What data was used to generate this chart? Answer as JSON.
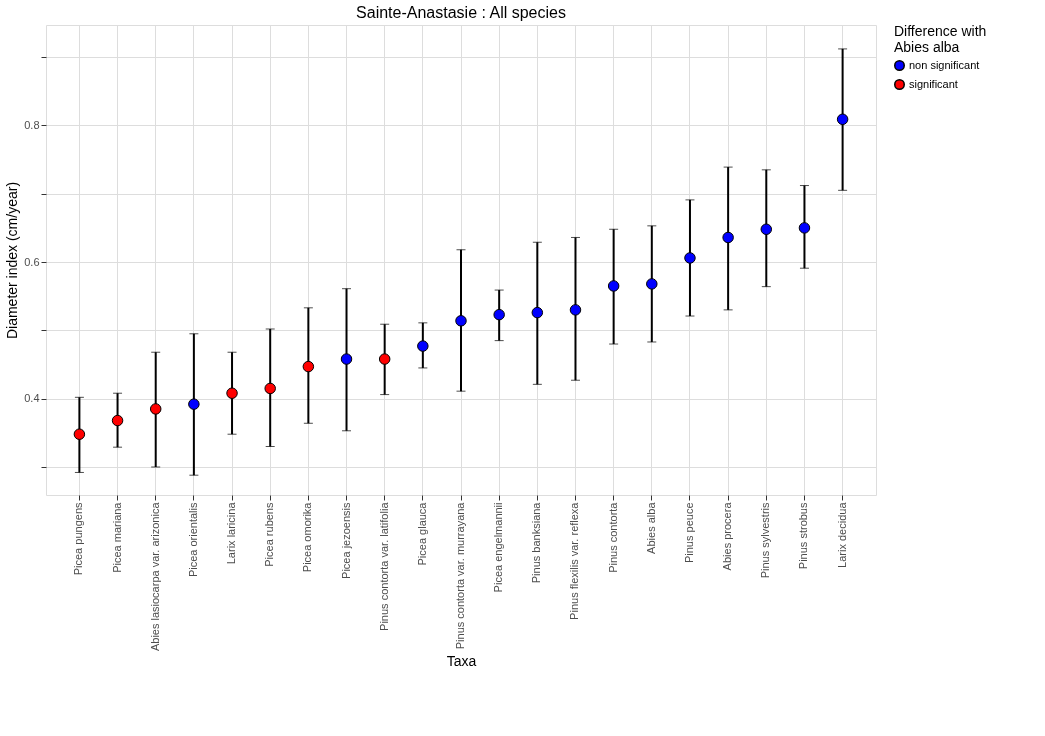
{
  "chart_data": {
    "type": "scatter",
    "title": "Sainte-Anastasie : All species",
    "xlabel": "Taxa",
    "ylabel": "Diameter index (cm/year)",
    "legend_title": "Difference with\n Abies alba",
    "categories": [
      "Picea pungens",
      "Picea mariana",
      "Abies lasiocarpa var. arizonica",
      "Picea orientalis",
      "Larix laricina",
      "Picea rubens",
      "Picea omorika",
      "Picea jezoensis",
      "Pinus contorta var. latifolia",
      "Picea glauca",
      "Pinus contorta var. murrayana",
      "Picea engelmannii",
      "Pinus banksiana",
      "Pinus flexilis var. reflexa",
      "Pinus contorta",
      "Abies alba",
      "Pinus peuce",
      "Abies procera",
      "Pinus sylvestris",
      "Pinus strobus",
      "Larix decidua"
    ],
    "series": [
      {
        "name": "non significant",
        "color": "#0000ff",
        "values": [
          null,
          null,
          null,
          0.392,
          null,
          null,
          null,
          0.458,
          null,
          0.477,
          0.514,
          0.523,
          0.526,
          0.53,
          0.565,
          0.568,
          0.606,
          0.636,
          0.648,
          0.65,
          0.809
        ],
        "errors": [
          null,
          null,
          null,
          [
            0.288,
            0.495
          ],
          null,
          null,
          null,
          [
            0.353,
            0.561
          ],
          null,
          [
            0.445,
            0.511
          ],
          [
            0.411,
            0.618
          ],
          [
            0.485,
            0.559
          ],
          [
            0.421,
            0.629
          ],
          [
            0.427,
            0.636
          ],
          [
            0.48,
            0.648
          ],
          [
            0.483,
            0.653
          ],
          [
            0.521,
            0.691
          ],
          [
            0.53,
            0.739
          ],
          [
            0.564,
            0.735
          ],
          [
            0.591,
            0.712
          ],
          [
            0.705,
            0.912
          ]
        ]
      },
      {
        "name": "significant",
        "color": "#ff0000",
        "values": [
          0.348,
          0.368,
          0.385,
          null,
          0.408,
          0.415,
          0.447,
          null,
          0.458,
          null,
          null,
          null,
          null,
          null,
          null,
          null,
          null,
          null,
          null,
          null,
          null
        ],
        "errors": [
          [
            0.292,
            0.402
          ],
          [
            0.329,
            0.408
          ],
          [
            0.3,
            0.468
          ],
          null,
          [
            0.348,
            0.468
          ],
          [
            0.33,
            0.502
          ],
          [
            0.364,
            0.533
          ],
          null,
          [
            0.406,
            0.509
          ],
          null,
          null,
          null,
          null,
          null,
          null,
          null,
          null,
          null,
          null,
          null,
          null
        ]
      }
    ],
    "ylim": [
      0.259,
      0.947
    ],
    "yticks": [
      {
        "value": 0.3,
        "label": null
      },
      0.4,
      {
        "value": 0.5,
        "label": null
      },
      0.6,
      {
        "value": 0.7,
        "label": null
      },
      0.8,
      {
        "value": 0.9,
        "label": null
      }
    ],
    "grid": true,
    "legend": "right",
    "marker": "circle"
  }
}
